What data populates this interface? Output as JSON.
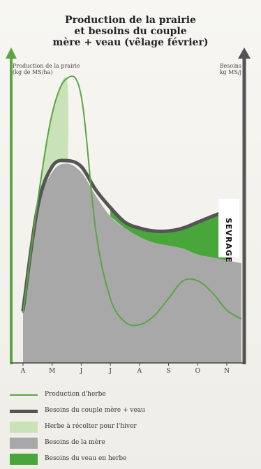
{
  "title_line1": "Production de la prairie",
  "title_line2": "et besoins du couple",
  "title_line3": "mère + veau (vêlage février)",
  "y_left_label_line1": "Production de la prairie",
  "y_left_label_line2": "(kg de MS/ha)",
  "y_right_label_line1": "Besoins",
  "y_right_label_line2": "kg MS/j",
  "sevrage_label": "SEVRAGE",
  "colors": {
    "production": "#5aa544",
    "couple": "#555555",
    "herbe_hiver": "#c9e2b8",
    "mere": "#a9a8a8",
    "veau": "#49a63a",
    "axis_left": "#5aa544",
    "axis_right": "#555555"
  },
  "legend": [
    {
      "label": "Production d'herbe",
      "kind": "line",
      "color": "#5aa544"
    },
    {
      "label": "Besoins du couple mère + veau",
      "kind": "line",
      "color": "#555555"
    },
    {
      "label": "Herbe à récolter pour l'hiver",
      "kind": "box",
      "color": "#c9e2b8"
    },
    {
      "label": "Besoins de la mère",
      "kind": "box",
      "color": "#a9a8a8"
    },
    {
      "label": "Besoins du veau en herbe",
      "kind": "box",
      "color": "#49a63a"
    }
  ],
  "chart_data": {
    "type": "area",
    "title": "Production de la prairie et besoins du couple mère + veau (vêlage février)",
    "categories": [
      "A",
      "M",
      "J",
      "J",
      "A",
      "S",
      "O",
      "N"
    ],
    "ylim": [
      0,
      100
    ],
    "series": [
      {
        "name": "Production d'herbe",
        "x": [
          0,
          0.5,
          1.0,
          1.5,
          2.0,
          2.5,
          3.0,
          3.5,
          4.0,
          4.5,
          5.0,
          5.5,
          6.0,
          6.5,
          7.0,
          7.5
        ],
        "values": [
          17,
          55,
          85,
          97,
          91,
          45,
          22,
          14,
          13,
          16,
          22,
          28,
          28,
          24,
          18,
          15
        ]
      },
      {
        "name": "Besoins du couple mère + veau",
        "x": [
          0,
          0.5,
          1.0,
          1.5,
          2.0,
          2.5,
          3.0,
          3.5,
          4.0,
          4.5,
          5.0,
          5.5,
          6.0,
          6.5,
          7.0
        ],
        "values": [
          18,
          53,
          67,
          69,
          67,
          59,
          53,
          48,
          46,
          45,
          45,
          46,
          48,
          50,
          52
        ]
      },
      {
        "name": "Besoins de la mère",
        "x": [
          0,
          0.5,
          1.0,
          1.5,
          2.0,
          2.5,
          3.0,
          3.5,
          4.0,
          4.5,
          5.0,
          5.5,
          6.0,
          6.5,
          7.0,
          7.5
        ],
        "values": [
          17,
          52,
          65,
          68,
          65,
          57,
          50,
          46,
          43,
          41,
          40,
          39,
          37,
          36,
          35,
          34
        ]
      }
    ],
    "annotations": [
      "SEVRAGE"
    ]
  }
}
